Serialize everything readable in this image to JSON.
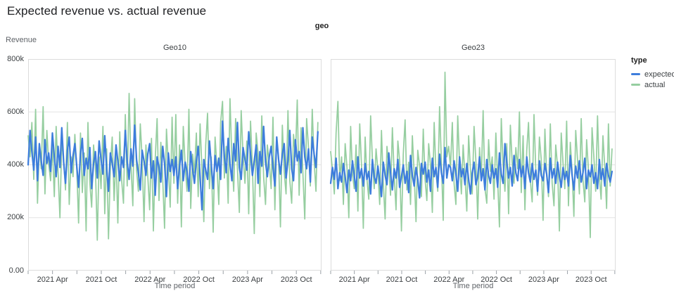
{
  "page": {
    "title": "Expected revenue vs. actual revenue"
  },
  "legend": {
    "title": "type",
    "items": [
      {
        "label": "expected",
        "color": "#3d7ddc"
      },
      {
        "label": "actual",
        "color": "#96cea0"
      }
    ]
  },
  "colors": {
    "expected_line": "#3d7ddc",
    "actual_line": "#96cea0",
    "gridline": "#e4e4e4",
    "plot_border": "#dcdcdc",
    "tick": "#9aa0a6",
    "axis_text": "#3c4043",
    "muted_text": "#5f6368",
    "title_text": "#202124"
  },
  "chart_data": {
    "type": "line",
    "title": "Expected revenue vs. actual revenue",
    "facet_field": "geo",
    "xlabel": "Time period",
    "ylabel": "Revenue",
    "ylim": [
      0,
      800
    ],
    "y_unit": "thousands",
    "grid": "horizontal-only",
    "legend_position": "right",
    "x_start": "2021-01-03",
    "x_interval_days": 7,
    "points_per_series": 156,
    "y_ticks": [
      {
        "label": "0.00",
        "value": 0
      },
      {
        "label": "200k",
        "value": 200
      },
      {
        "label": "400k",
        "value": 400
      },
      {
        "label": "600k",
        "value": 600
      },
      {
        "label": "800k",
        "value": 800
      }
    ],
    "x_ticks": [
      {
        "month": 0,
        "label": ""
      },
      {
        "month": 3,
        "label": "2021 Apr"
      },
      {
        "month": 6,
        "label": ""
      },
      {
        "month": 9,
        "label": "2021 Oct"
      },
      {
        "month": 12,
        "label": ""
      },
      {
        "month": 15,
        "label": "2022 Apr"
      },
      {
        "month": 18,
        "label": ""
      },
      {
        "month": 21,
        "label": "2022 Oct"
      },
      {
        "month": 24,
        "label": ""
      },
      {
        "month": 27,
        "label": "2023 Apr"
      },
      {
        "month": 30,
        "label": ""
      },
      {
        "month": 33,
        "label": "2023 Oct"
      },
      {
        "month": 36,
        "label": ""
      }
    ],
    "facets": [
      {
        "title": "Geo10",
        "series": [
          {
            "name": "expected",
            "color": "#3d7ddc",
            "width": 2.25,
            "values": [
              400,
              530,
              450,
              380,
              505,
              340,
              480,
              415,
              360,
              495,
              405,
              445,
              375,
              520,
              430,
              355,
              470,
              390,
              540,
              410,
              330,
              455,
              505,
              370,
              435,
              480,
              395,
              315,
              440,
              500,
              360,
              425,
              385,
              465,
              310,
              405,
              450,
              350,
              490,
              420,
              365,
              510,
              385,
              300,
              445,
              405,
              355,
              475,
              415,
              340,
              430,
              390,
              530,
              410,
              345,
              460,
              395,
              550,
              420,
              370,
              305,
              455,
              415,
              360,
              440,
              480,
              350,
              415,
              285,
              430,
              390,
              335,
              470,
              405,
              280,
              445,
              375,
              420,
              360,
              430,
              310,
              395,
              455,
              340,
              410,
              375,
              300,
              450,
              385,
              330,
              415,
              470,
              355,
              230,
              420,
              380,
              345,
              490,
              400,
              310,
              435,
              375,
              425,
              345,
              565,
              430,
              370,
              500,
              405,
              340,
              480,
              415,
              560,
              390,
              345,
              465,
              420,
              380,
              525,
              440,
              360,
              415,
              475,
              330,
              450,
              395,
              545,
              410,
              355,
              430,
              470,
              390,
              320,
              505,
              420,
              365,
              440,
              480,
              350,
              415,
              530,
              385,
              340,
              495,
              415,
              450,
              370,
              540,
              430,
              385,
              460,
              335,
              505,
              440,
              390,
              525
            ]
          },
          {
            "name": "actual",
            "color": "#96cea0",
            "width": 1.75,
            "values": [
              510,
              430,
              560,
              345,
              610,
              255,
              470,
              385,
              620,
              290,
              530,
              405,
              340,
              470,
              280,
              545,
              375,
              200,
              495,
              415,
              305,
              560,
              250,
              430,
              355,
              515,
              385,
              180,
              520,
              295,
              445,
              150,
              560,
              330,
              240,
              475,
              395,
              115,
              430,
              310,
              545,
              215,
              460,
              120,
              395,
              505,
              265,
              440,
              180,
              525,
              345,
              255,
              590,
              320,
              670,
              405,
              245,
              650,
              380,
              300,
              555,
              425,
              185,
              475,
              360,
              230,
              500,
              150,
              420,
              575,
              265,
              485,
              345,
              160,
              535,
              405,
              240,
              580,
              330,
              590,
              255,
              475,
              165,
              545,
              395,
              300,
              610,
              235,
              440,
              370,
              520,
              280,
              555,
              380,
              185,
              475,
              595,
              310,
              430,
              145,
              505,
              395,
              250,
              560,
              640,
              350,
              470,
              255,
              650,
              420,
              300,
              575,
              385,
              220,
              605,
              435,
              330,
              490,
              215,
              565,
              390,
              140,
              520,
              445,
              280,
              585,
              355,
              250,
              475,
              405,
              310,
              580,
              230,
              495,
              420,
              165,
              550,
              375,
              290,
              605,
              340,
              255,
              515,
              430,
              645,
              285,
              540,
              370,
              195,
              575,
              465,
              320,
              610,
              415,
              300,
              560
            ]
          }
        ]
      },
      {
        "title": "Geo23",
        "series": [
          {
            "name": "expected",
            "color": "#3d7ddc",
            "width": 2.25,
            "values": [
              330,
              390,
              345,
              425,
              310,
              370,
              335,
              405,
              355,
              295,
              380,
              340,
              415,
              360,
              300,
              430,
              350,
              385,
              320,
              405,
              345,
              375,
              290,
              420,
              355,
              330,
              395,
              340,
              280,
              410,
              360,
              325,
              445,
              370,
              305,
              385,
              350,
              420,
              315,
              355,
              400,
              330,
              375,
              295,
              435,
              360,
              320,
              390,
              345,
              275,
              405,
              365,
              410,
              335,
              380,
              300,
              425,
              355,
              390,
              315,
              440,
              370,
              330,
              465,
              350,
              400,
              390,
              340,
              415,
              365,
              300,
              430,
              355,
              385,
              325,
              405,
              345,
              290,
              370,
              410,
              325,
              355,
              430,
              340,
              385,
              305,
              420,
              360,
              330,
              400,
              350,
              385,
              315,
              445,
              365,
              330,
              480,
              410,
              350,
              390,
              320,
              435,
              370,
              340,
              420,
              355,
              395,
              310,
              430,
              370,
              335,
              405,
              345,
              380,
              300,
              415,
              360,
              340,
              405,
              365,
              295,
              425,
              350,
              385,
              330,
              410,
              355,
              315,
              390,
              345,
              375,
              320,
              435,
              360,
              305,
              395,
              350,
              415,
              335,
              370,
              425,
              310,
              380,
              355,
              400,
              330,
              370,
              310,
              420,
              345,
              385,
              320,
              405,
              360,
              335,
              375
            ]
          },
          {
            "name": "actual",
            "color": "#96cea0",
            "width": 1.75,
            "values": [
              450,
              380,
              290,
              520,
              640,
              340,
              430,
              250,
              480,
              390,
              200,
              545,
              365,
              310,
              475,
              225,
              555,
              395,
              160,
              505,
              345,
              270,
              585,
              420,
              310,
              460,
              380,
              250,
              530,
              330,
              195,
              470,
              395,
              285,
              540,
              360,
              230,
              490,
              415,
              150,
              440,
              570,
              305,
              410,
              250,
              510,
              365,
              185,
              455,
              395,
              280,
              535,
              345,
              265,
              480,
              400,
              220,
              560,
              375,
              300,
              620,
              410,
              190,
              750,
              430,
              470,
              390,
              560,
              330,
              250,
              585,
              405,
              290,
              475,
              355,
              225,
              510,
              380,
              290,
              545,
              415,
              195,
              465,
              350,
              605,
              310,
              255,
              495,
              375,
              430,
              270,
              520,
              340,
              165,
              575,
              395,
              300,
              480,
              215,
              550,
              410,
              330,
              465,
              385,
              600,
              295,
              510,
              230,
              455,
              560,
              340,
              260,
              590,
              375,
              285,
              505,
              420,
              190,
              535,
              365,
              280,
              555,
              330,
              245,
              475,
              395,
              150,
              520,
              405,
              310,
              565,
              245,
              485,
              375,
              205,
              530,
              420,
              290,
              575,
              345,
              260,
              495,
              380,
              125,
              540,
              430,
              300,
              585,
              355,
              270,
              510,
              390,
              235,
              555,
              320,
              460
            ]
          }
        ]
      }
    ]
  }
}
